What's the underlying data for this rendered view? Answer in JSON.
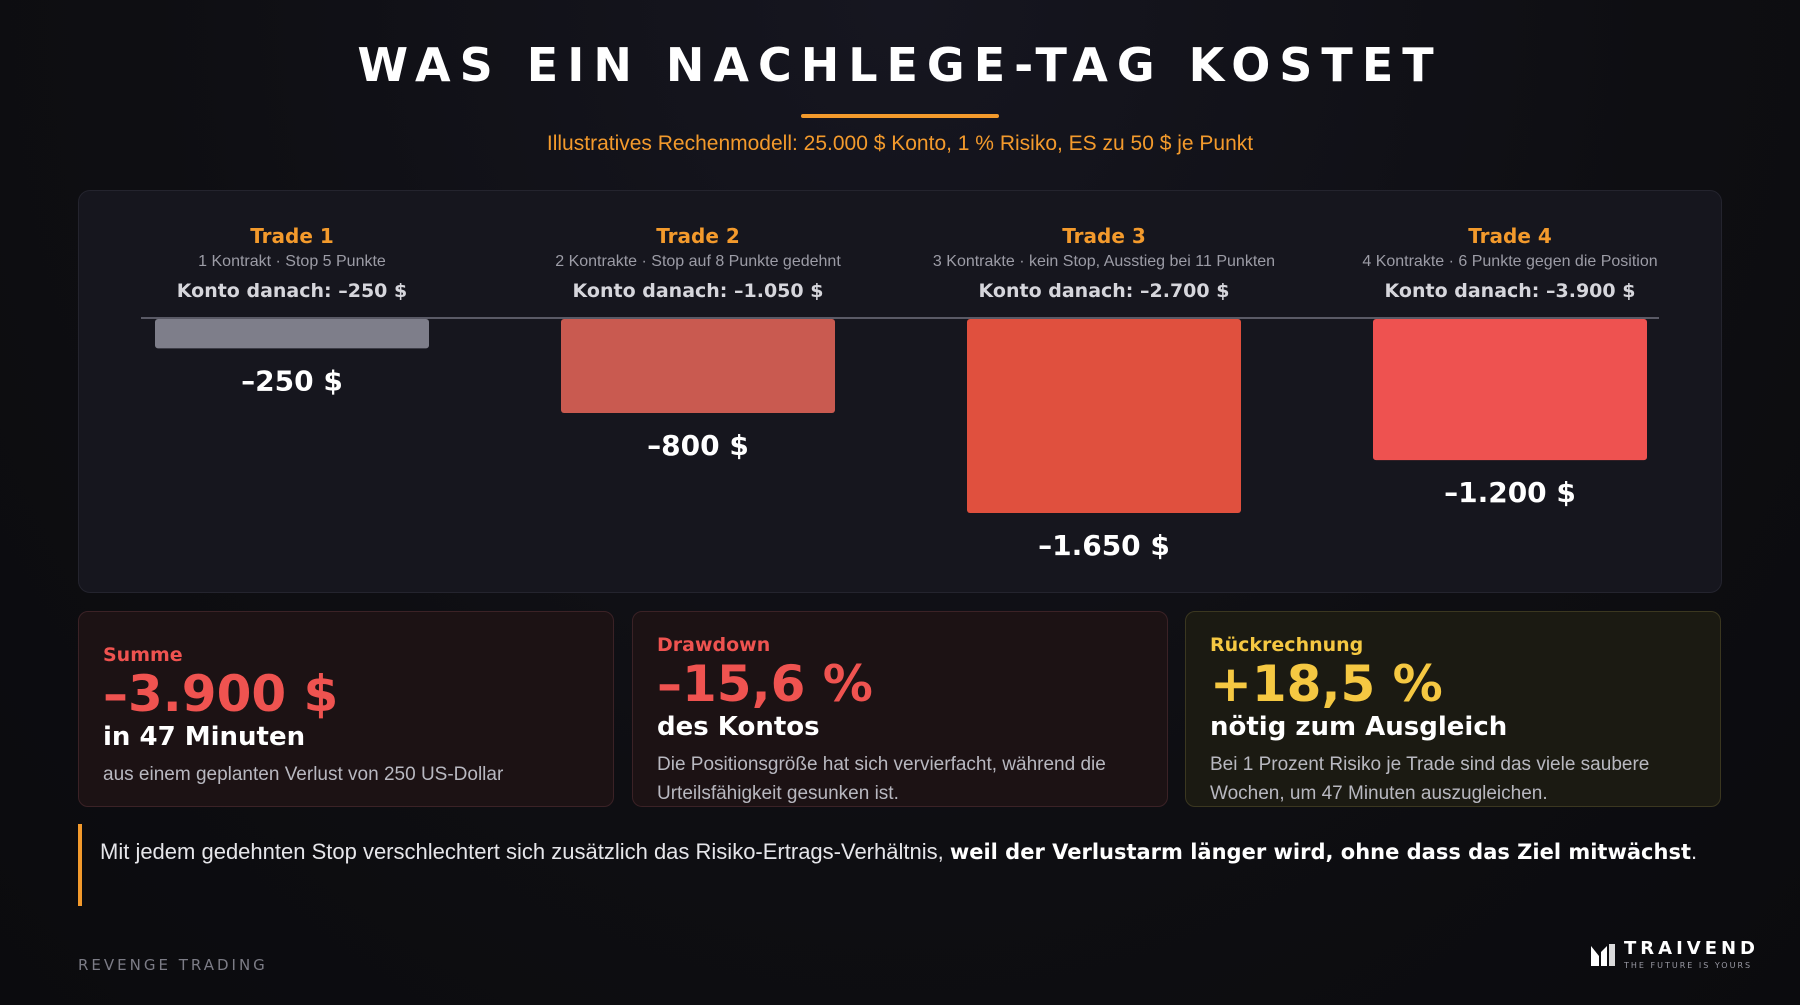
{
  "title": "WAS EIN NACHLEGE-TAG KOSTET",
  "subtitle": "Illustratives Rechenmodell: 25.000 $ Konto, 1 % Risiko, ES zu 50 $ je Punkt",
  "colors": {
    "accent": "#f39a2c",
    "bar_trade1": "#7e7e8a",
    "bar_trade2": "#c95a50",
    "bar_trade3": "#e0503e",
    "bar_trade4": "#ee5250",
    "loss_red": "#ef5350",
    "yellow": "#f5c842"
  },
  "trades": [
    {
      "name": "Trade 1",
      "desc": "1 Kontrakt · Stop 5 Punkte",
      "after": "Konto danach: –250 $"
    },
    {
      "name": "Trade 2",
      "desc": "2 Kontrakte · Stop auf 8 Punkte gedehnt",
      "after": "Konto danach: –1.050 $"
    },
    {
      "name": "Trade 3",
      "desc": "3 Kontrakte · kein Stop, Ausstieg bei 11 Punkten",
      "after": "Konto danach: –2.700 $"
    },
    {
      "name": "Trade 4",
      "desc": "4 Kontrakte · 6 Punkte gegen die Position",
      "after": "Konto danach: –3.900 $"
    }
  ],
  "chart_data": {
    "type": "bar",
    "categories": [
      "Trade 1",
      "Trade 2",
      "Trade 3",
      "Trade 4"
    ],
    "values": [
      -250,
      -800,
      -1650,
      -1200
    ],
    "value_labels": [
      "–250 $",
      "–800 $",
      "–1.650 $",
      "–1.200 $"
    ],
    "title": "",
    "xlabel": "",
    "ylabel": "",
    "ylim": [
      -1650,
      0
    ],
    "grid": false,
    "orientation": "bars hang downward from zero baseline"
  },
  "cards": {
    "summe": {
      "label": "Summe",
      "big": "–3.900 $",
      "sub": "in 47 Minuten",
      "text": "aus einem geplanten Verlust von 250 US-Dollar"
    },
    "drawdown": {
      "label": "Drawdown",
      "big": "–15,6 %",
      "sub": "des Kontos",
      "text": "Die Positionsgröße hat sich vervierfacht, während die Urteilsfähigkeit gesunken ist."
    },
    "rueckrechnung": {
      "label": "Rückrechnung",
      "big": "+18,5 %",
      "sub": "nötig zum Ausgleich",
      "text": "Bei 1 Prozent Risiko je Trade sind das viele saubere Wochen, um 47 Minuten auszugleichen."
    }
  },
  "quote": {
    "normal": "Mit jedem gedehnten Stop verschlechtert sich zusätzlich das Risiko-Ertrags-Verhältnis, ",
    "bold": "weil der Verlustarm länger wird, ohne dass das Ziel mitwächst",
    "end": "."
  },
  "footer": {
    "left": "REVENGE TRADING",
    "brand": "TRAIVEND",
    "tagline": "THE FUTURE IS YOURS"
  }
}
